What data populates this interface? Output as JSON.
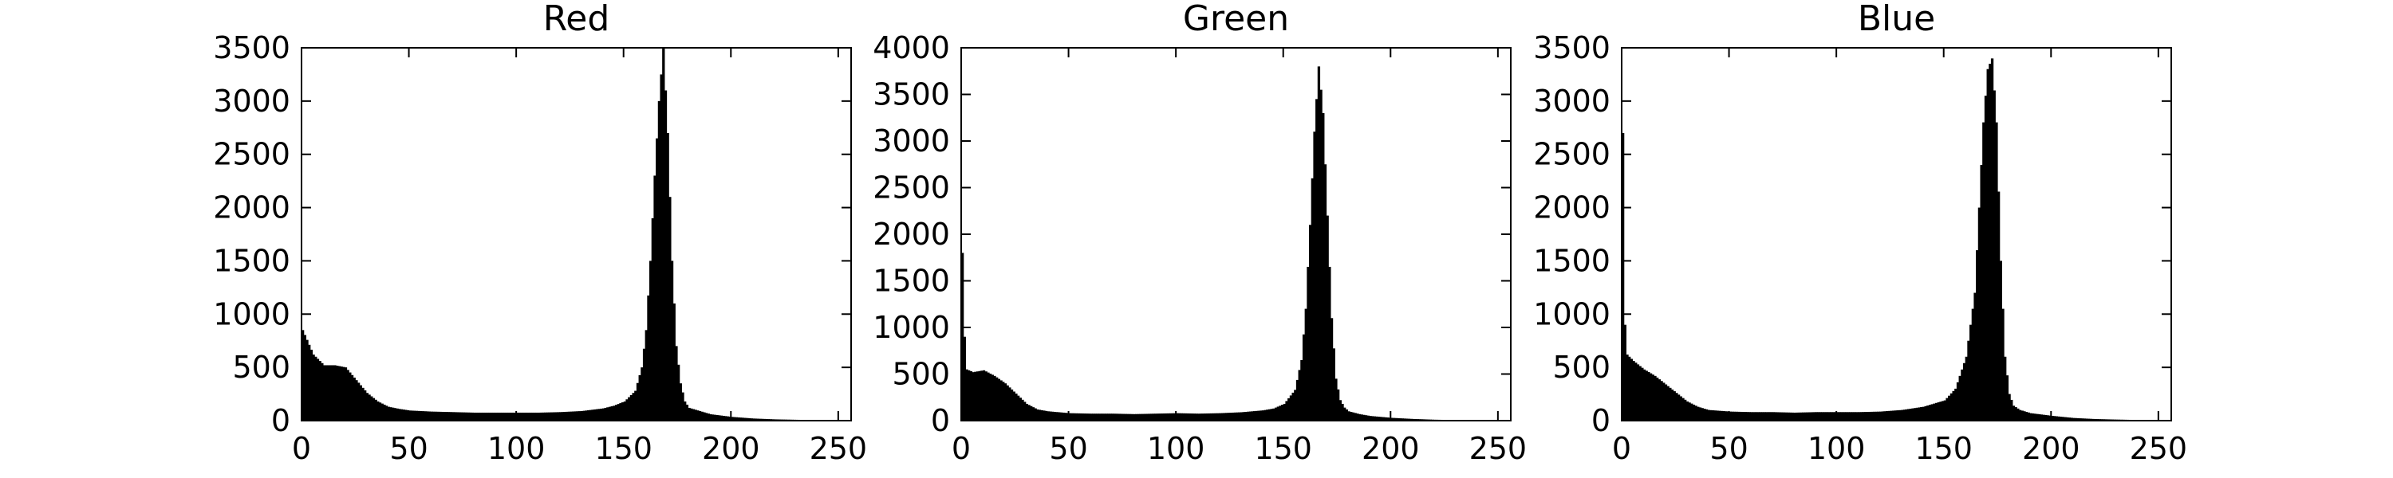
{
  "chart_data": [
    {
      "type": "bar",
      "title": "Red",
      "xlim": [
        0,
        256
      ],
      "ylim": [
        0,
        3500
      ],
      "xticks": [
        "0",
        "50",
        "100",
        "150",
        "200",
        "250"
      ],
      "yticks": [
        "0",
        "500",
        "1000",
        "1500",
        "2000",
        "2500",
        "3000",
        "3500"
      ],
      "x": [
        0,
        5,
        10,
        15,
        20,
        25,
        30,
        35,
        40,
        45,
        50,
        60,
        70,
        80,
        90,
        100,
        110,
        120,
        130,
        140,
        145,
        150,
        155,
        158,
        160,
        162,
        164,
        166,
        168,
        170,
        172,
        174,
        176,
        178,
        180,
        185,
        190,
        200,
        210,
        220,
        230,
        240,
        255
      ],
      "values": [
        850,
        620,
        520,
        520,
        500,
        380,
        260,
        180,
        130,
        110,
        95,
        85,
        80,
        75,
        75,
        75,
        75,
        80,
        90,
        115,
        140,
        180,
        280,
        500,
        850,
        1500,
        2300,
        3000,
        3500,
        2700,
        1500,
        700,
        350,
        180,
        120,
        90,
        60,
        35,
        20,
        12,
        8,
        5,
        3
      ],
      "color": "#000000",
      "grid": false
    },
    {
      "type": "bar",
      "title": "Green",
      "xlim": [
        0,
        256
      ],
      "ylim": [
        0,
        4000
      ],
      "xticks": [
        "0",
        "50",
        "100",
        "150",
        "200",
        "250"
      ],
      "yticks": [
        "0",
        "500",
        "1000",
        "1500",
        "2000",
        "2500",
        "3000",
        "3500",
        "4000"
      ],
      "x": [
        0,
        1,
        2,
        5,
        10,
        15,
        20,
        25,
        30,
        35,
        40,
        50,
        60,
        70,
        80,
        90,
        100,
        110,
        120,
        130,
        140,
        145,
        150,
        155,
        158,
        160,
        162,
        164,
        166,
        168,
        170,
        172,
        174,
        176,
        178,
        180,
        185,
        190,
        200,
        210,
        220,
        230,
        240,
        255
      ],
      "values": [
        1800,
        900,
        550,
        520,
        540,
        480,
        400,
        290,
        180,
        120,
        100,
        80,
        75,
        75,
        70,
        75,
        80,
        75,
        80,
        90,
        110,
        130,
        180,
        330,
        650,
        1200,
        2100,
        3100,
        3800,
        3300,
        2200,
        1100,
        450,
        220,
        140,
        100,
        70,
        50,
        30,
        18,
        10,
        6,
        4,
        2
      ],
      "color": "#000000",
      "grid": false
    },
    {
      "type": "bar",
      "title": "Blue",
      "xlim": [
        0,
        256
      ],
      "ylim": [
        0,
        3500
      ],
      "xticks": [
        "0",
        "50",
        "100",
        "150",
        "200",
        "250"
      ],
      "yticks": [
        "0",
        "500",
        "1000",
        "1500",
        "2000",
        "2500",
        "3000",
        "3500"
      ],
      "x": [
        0,
        1,
        2,
        5,
        10,
        15,
        20,
        25,
        30,
        35,
        40,
        50,
        60,
        70,
        80,
        90,
        100,
        110,
        120,
        130,
        140,
        150,
        155,
        160,
        164,
        166,
        168,
        170,
        172,
        174,
        176,
        178,
        180,
        182,
        185,
        190,
        200,
        210,
        220,
        230,
        240,
        255
      ],
      "values": [
        2700,
        900,
        620,
        560,
        480,
        420,
        340,
        260,
        180,
        130,
        100,
        85,
        80,
        80,
        75,
        80,
        80,
        80,
        85,
        100,
        130,
        190,
        300,
        600,
        1200,
        2000,
        2800,
        3300,
        3400,
        2800,
        1500,
        600,
        250,
        140,
        100,
        70,
        45,
        25,
        15,
        10,
        6,
        3
      ],
      "color": "#000000",
      "grid": false
    }
  ]
}
